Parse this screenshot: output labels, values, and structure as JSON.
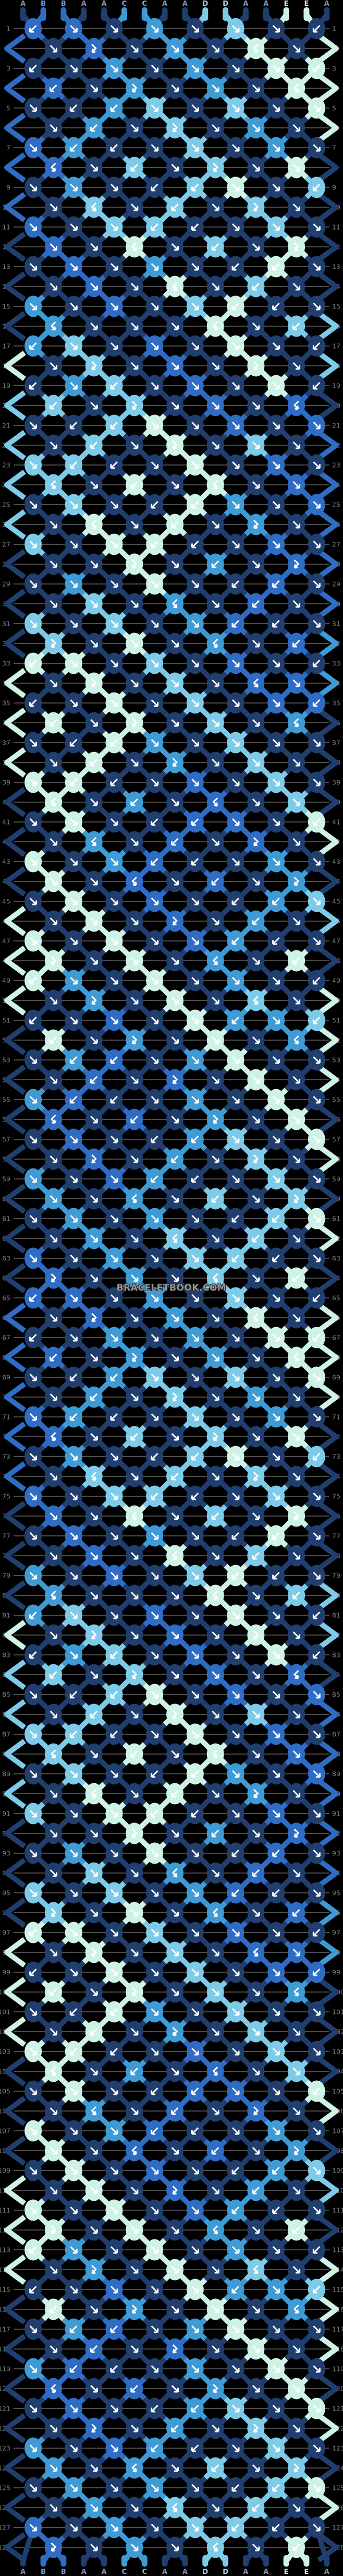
{
  "watermark": "BRACELETBOOK.COM",
  "pattern": {
    "strands": [
      "A",
      "B",
      "B",
      "A",
      "A",
      "C",
      "C",
      "A",
      "A",
      "D",
      "D",
      "A",
      "A",
      "E",
      "E",
      "A"
    ],
    "palette": {
      "A": "#203e6e",
      "B": "#2f6cc4",
      "C": "#3f9bd5",
      "D": "#7ecbe9",
      "E": "#cff2e6"
    },
    "label_colors": {
      "A": "#8494ac",
      "B": "#6f9fdc",
      "C": "#79c0e6",
      "D": "#abdff3",
      "E": "#d9f5ec"
    },
    "total_rows": 128,
    "repeat": 2,
    "base_rows": [
      "Bb Bf Af Cf Af Df Af Ab",
      "Af Bfb Af Cf Af Ebf Af",
      "Ab Af Cf Af Cf Af Ef Eb",
      "Bb Af Cfb Af Cf Af Ebf",
      "Af Ab Cb Df Af Df Af Ef",
      "Af Cb Af Dfb Af Cf Af",
      "Bf Cb Ab Af Df Af Cf Af",
      "Bbf Af Db Af Dfb Af Ef",
      "Af Cf Af Ab Db Ef Af Db",
      "Af Dbf Af Db Af Dfb Af",
      "Bf Af Df Db Ab Af Df Af",
      "Bf Af Ebf Af Db Af Efb",
      "Af Bf Af Cf Af Ab Eb Af",
      "Af Bf Af Ebf Af Db Af",
      "Cf Af Bf Af Df Eb Ab Af",
      "Cbf Af Af Af Ebf Af Db",
      "Cb Df Af Bf Af Ef Af Ab",
      "Af Dfb Af Bf Af Efb Af",
      "Ab Cf Db Af Bf Af Ef Ab",
      "Db Af Dfb Af Bf Af Bbf",
      "Af Ab Db Ef Af Bf Af Bf",
      "Af Db Af Efb Af Df Af",
      "Df Db Ab Af Ef Af Bf Af",
      "Dbf Af Eb Af Ebf Af Bf",
      "Af Df Af Ab Eb Cf Af Bf",
      "Af Ebf Af Eb Af Cfb Af",
      "Df Af Ef Eb Ab Af Bf Af",
      "Af Af Efb Af Cb Af Bfb",
      "Af Cf Af Ef Af Ab Bb Af",
      "Af Df Af Cbf Af Bb Af",
      "Df Af Df Af Cf Bb Ab Af",
      "Dfb Af Ef Af Cbf Af Bb",
      "Eb Ef Af Df Af Bf Af Ab",
      "Af Efb Af Df Af Bbf Bf",
      "Ab Af Ef Af Df Af Bf Bb",
      "Eb Af Efb Af Df Af Cbf",
      "Af Ab Eb Cf Af Df Af Af",
      "Af Eb Af Cfb Af Df Af",
      "Ef Eb Ab Af Bf Af Df Af",
      "Ebf Af Cb Af Bbf Af Df",
      "Af Ef Af Ab Bb Bf Af Eb",
      "Af Cbf Af Bb Af Bfb Af",
      "Ef Af Cf Bb Ab Af Cf Af",
      "Ef Af Bbf Af Bb Af Cfb",
      "Af Ef Af Bf Af Ab Cb Df",
      "Af Ef Af Bfb Af Cb Af",
      "Ef Af Ef Af Bf Cb Ab Af",
      "Efb Af Ef Af Cbf Af Eb",
      "Eb Cf Af Ef Af Cf Af Ab",
      "Af Cfb Af Ef Af Dbf Af",
      "Ab Af Bf Af Ef Cb Cf Db",
      "Eb Af Cfb Af Ef Af Cbf",
      "Af Cb Bb Af Cf Ef Af Af",
      "Af Bb Af Bfb Af Ef Af",
      "Cf Bb Ab Af Cf Af Ef Af",
      "Bbf Af Bb Af Cfb Af Ef",
      "Af Bf Af Ab Cb Df Af Ef",
      "Af Bfb Af Cb Af Dfb Af",
      "Cf Af Bf Cb Ab Af Df Af",
      "Cf Af Cbf Af Db Af Dfb",
      "Af Cf Af Cf Af Ab Db Ef",
      "Af Cf Af Dbf Af Db Af",
      "Bf Af Cf Af Df Db Ab Af",
      "Bfb Af Cf Af Dbf Af Eb"
    ],
    "edge_left": [
      "B",
      "B",
      "B",
      "B",
      "B",
      "A",
      "A",
      "A",
      "E",
      "D",
      "D",
      "D",
      "D",
      "A",
      "A",
      "A",
      "E",
      "E",
      "E",
      "A",
      "A",
      "A",
      "E",
      "E",
      "E",
      "A",
      "A",
      "A",
      "A",
      "A",
      "A",
      "A"
    ],
    "edge_right": [
      "E",
      "E",
      "E",
      "A",
      "A",
      "A",
      "A",
      "D",
      "D",
      "A",
      "B",
      "B",
      "B",
      "B",
      "B",
      "C",
      "C",
      "A",
      "A",
      "A",
      "E",
      "A",
      "D",
      "A",
      "E",
      "E",
      "E",
      "A",
      "E",
      "A",
      "E",
      "A"
    ]
  },
  "layout_colors": {
    "background": "#000000",
    "row_line": "#9c9c9c",
    "row_number": "#828282",
    "arrow": "#ffffff"
  }
}
